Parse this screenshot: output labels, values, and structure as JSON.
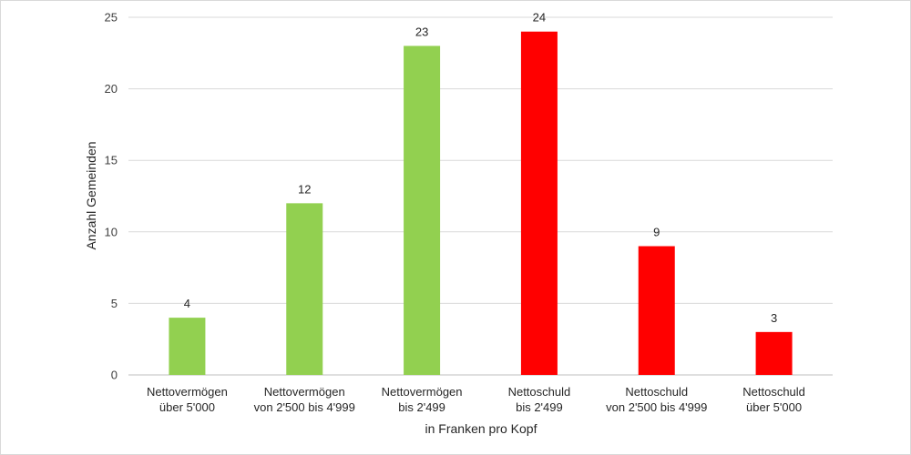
{
  "chart_data": {
    "type": "bar",
    "categories": [
      [
        "Nettovermögen",
        "über 5'000"
      ],
      [
        "Nettovermögen",
        "von 2'500 bis 4'999"
      ],
      [
        "Nettovermögen",
        "bis 2'499"
      ],
      [
        "Nettoschuld",
        "bis 2'499"
      ],
      [
        "Nettoschuld",
        "von 2'500 bis 4'999"
      ],
      [
        "Nettoschuld",
        "über 5'000"
      ]
    ],
    "values": [
      4,
      12,
      23,
      24,
      9,
      3
    ],
    "bar_colors": [
      "#92d050",
      "#92d050",
      "#92d050",
      "#ff0000",
      "#ff0000",
      "#ff0000"
    ],
    "xlabel": "in Franken pro Kopf",
    "ylabel": "Anzahl Gemeinden",
    "ylim": [
      0,
      25
    ],
    "yticks": [
      0,
      5,
      10,
      15,
      20,
      25
    ],
    "grid": true,
    "legend": "none"
  }
}
